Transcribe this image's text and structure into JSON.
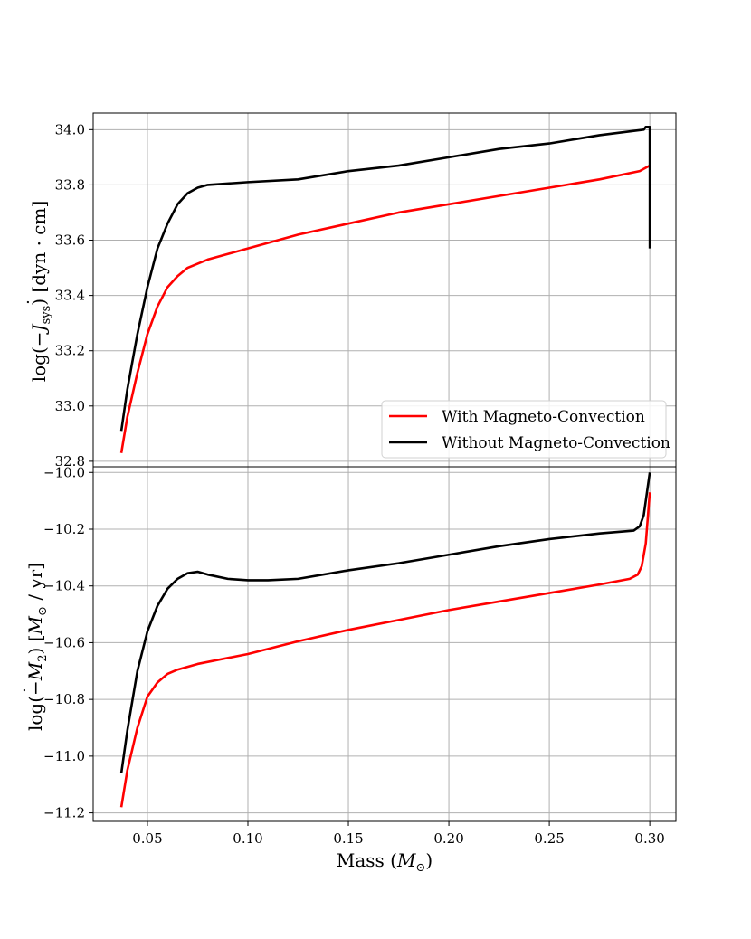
{
  "chart_data": [
    {
      "type": "line",
      "ylabel": "log(−J̇sys)  [dyn · cm]",
      "ylabel_parts": {
        "pre": "log(−",
        "sym": "J",
        "sub": "sys",
        "post": ")  [dyn · cm]"
      },
      "xlim": [
        0.023,
        0.313
      ],
      "ylim": [
        32.78,
        34.06
      ],
      "yticks": [
        "32.8",
        "33.0",
        "33.2",
        "33.4",
        "33.6",
        "33.8",
        "34.0"
      ],
      "ytick_values": [
        32.8,
        33.0,
        33.2,
        33.4,
        33.6,
        33.8,
        34.0
      ],
      "grid": true,
      "legend": {
        "placement": "lower-right",
        "entries": [
          "With Magneto-Convection",
          "Without Magneto-Convection"
        ]
      },
      "series": [
        {
          "name": "With Magneto-Convection",
          "color": "#ff0000",
          "points": [
            [
              0.037,
              32.83
            ],
            [
              0.04,
              32.96
            ],
            [
              0.045,
              33.12
            ],
            [
              0.05,
              33.26
            ],
            [
              0.055,
              33.36
            ],
            [
              0.06,
              33.43
            ],
            [
              0.065,
              33.47
            ],
            [
              0.07,
              33.5
            ],
            [
              0.08,
              33.53
            ],
            [
              0.09,
              33.55
            ],
            [
              0.1,
              33.57
            ],
            [
              0.125,
              33.62
            ],
            [
              0.15,
              33.66
            ],
            [
              0.175,
              33.7
            ],
            [
              0.2,
              33.73
            ],
            [
              0.225,
              33.76
            ],
            [
              0.25,
              33.79
            ],
            [
              0.275,
              33.82
            ],
            [
              0.295,
              33.85
            ],
            [
              0.3,
              33.87
            ]
          ]
        },
        {
          "name": "Without Magneto-Convection",
          "color": "#000000",
          "points": [
            [
              0.037,
              32.91
            ],
            [
              0.04,
              33.06
            ],
            [
              0.045,
              33.26
            ],
            [
              0.05,
              33.43
            ],
            [
              0.055,
              33.57
            ],
            [
              0.06,
              33.66
            ],
            [
              0.065,
              33.73
            ],
            [
              0.07,
              33.77
            ],
            [
              0.075,
              33.79
            ],
            [
              0.08,
              33.8
            ],
            [
              0.1,
              33.81
            ],
            [
              0.125,
              33.82
            ],
            [
              0.15,
              33.85
            ],
            [
              0.175,
              33.87
            ],
            [
              0.2,
              33.9
            ],
            [
              0.225,
              33.93
            ],
            [
              0.25,
              33.95
            ],
            [
              0.275,
              33.98
            ],
            [
              0.297,
              34.0
            ],
            [
              0.298,
              34.01
            ],
            [
              0.3,
              34.01
            ],
            [
              0.3,
              33.57
            ]
          ]
        }
      ]
    },
    {
      "type": "line",
      "xlabel": "Mass (M⊙)",
      "xlabel_parts": {
        "pre": "Mass (",
        "sym": "M",
        "sub": "⊙",
        "post": ")"
      },
      "ylabel": "log(−Ṁ2)  [M⊙ / yr]",
      "ylabel_parts": {
        "pre": "log(−",
        "sym": "M",
        "sub": "2",
        "mid": ")  [",
        "sym2": "M",
        "sub2": "⊙",
        "post": " / yr]"
      },
      "xlim": [
        0.023,
        0.313
      ],
      "ylim": [
        -11.23,
        -9.98
      ],
      "xticks": [
        "0.05",
        "0.10",
        "0.15",
        "0.20",
        "0.25",
        "0.30"
      ],
      "xtick_values": [
        0.05,
        0.1,
        0.15,
        0.2,
        0.25,
        0.3
      ],
      "yticks": [
        "−11.2",
        "−11.0",
        "−10.8",
        "−10.6",
        "−10.4",
        "−10.2",
        "−10.0"
      ],
      "ytick_values": [
        -11.2,
        -11.0,
        -10.8,
        -10.6,
        -10.4,
        -10.2,
        -10.0
      ],
      "grid": true,
      "series": [
        {
          "name": "With Magneto-Convection",
          "color": "#ff0000",
          "points": [
            [
              0.037,
              -11.18
            ],
            [
              0.04,
              -11.05
            ],
            [
              0.045,
              -10.9
            ],
            [
              0.05,
              -10.79
            ],
            [
              0.055,
              -10.74
            ],
            [
              0.06,
              -10.71
            ],
            [
              0.065,
              -10.695
            ],
            [
              0.075,
              -10.675
            ],
            [
              0.1,
              -10.64
            ],
            [
              0.125,
              -10.595
            ],
            [
              0.15,
              -10.555
            ],
            [
              0.175,
              -10.52
            ],
            [
              0.2,
              -10.485
            ],
            [
              0.225,
              -10.455
            ],
            [
              0.25,
              -10.425
            ],
            [
              0.275,
              -10.395
            ],
            [
              0.29,
              -10.375
            ],
            [
              0.294,
              -10.36
            ],
            [
              0.296,
              -10.33
            ],
            [
              0.298,
              -10.25
            ],
            [
              0.3,
              -10.07
            ]
          ]
        },
        {
          "name": "Without Magneto-Convection",
          "color": "#000000",
          "points": [
            [
              0.037,
              -11.06
            ],
            [
              0.04,
              -10.91
            ],
            [
              0.045,
              -10.7
            ],
            [
              0.05,
              -10.56
            ],
            [
              0.055,
              -10.47
            ],
            [
              0.06,
              -10.41
            ],
            [
              0.065,
              -10.375
            ],
            [
              0.07,
              -10.355
            ],
            [
              0.075,
              -10.35
            ],
            [
              0.08,
              -10.36
            ],
            [
              0.09,
              -10.375
            ],
            [
              0.1,
              -10.38
            ],
            [
              0.11,
              -10.38
            ],
            [
              0.125,
              -10.375
            ],
            [
              0.15,
              -10.345
            ],
            [
              0.175,
              -10.32
            ],
            [
              0.2,
              -10.29
            ],
            [
              0.225,
              -10.26
            ],
            [
              0.25,
              -10.235
            ],
            [
              0.275,
              -10.215
            ],
            [
              0.292,
              -10.205
            ],
            [
              0.295,
              -10.19
            ],
            [
              0.297,
              -10.15
            ],
            [
              0.298,
              -10.1
            ],
            [
              0.299,
              -10.05
            ],
            [
              0.3,
              -10.0
            ]
          ]
        }
      ]
    }
  ]
}
